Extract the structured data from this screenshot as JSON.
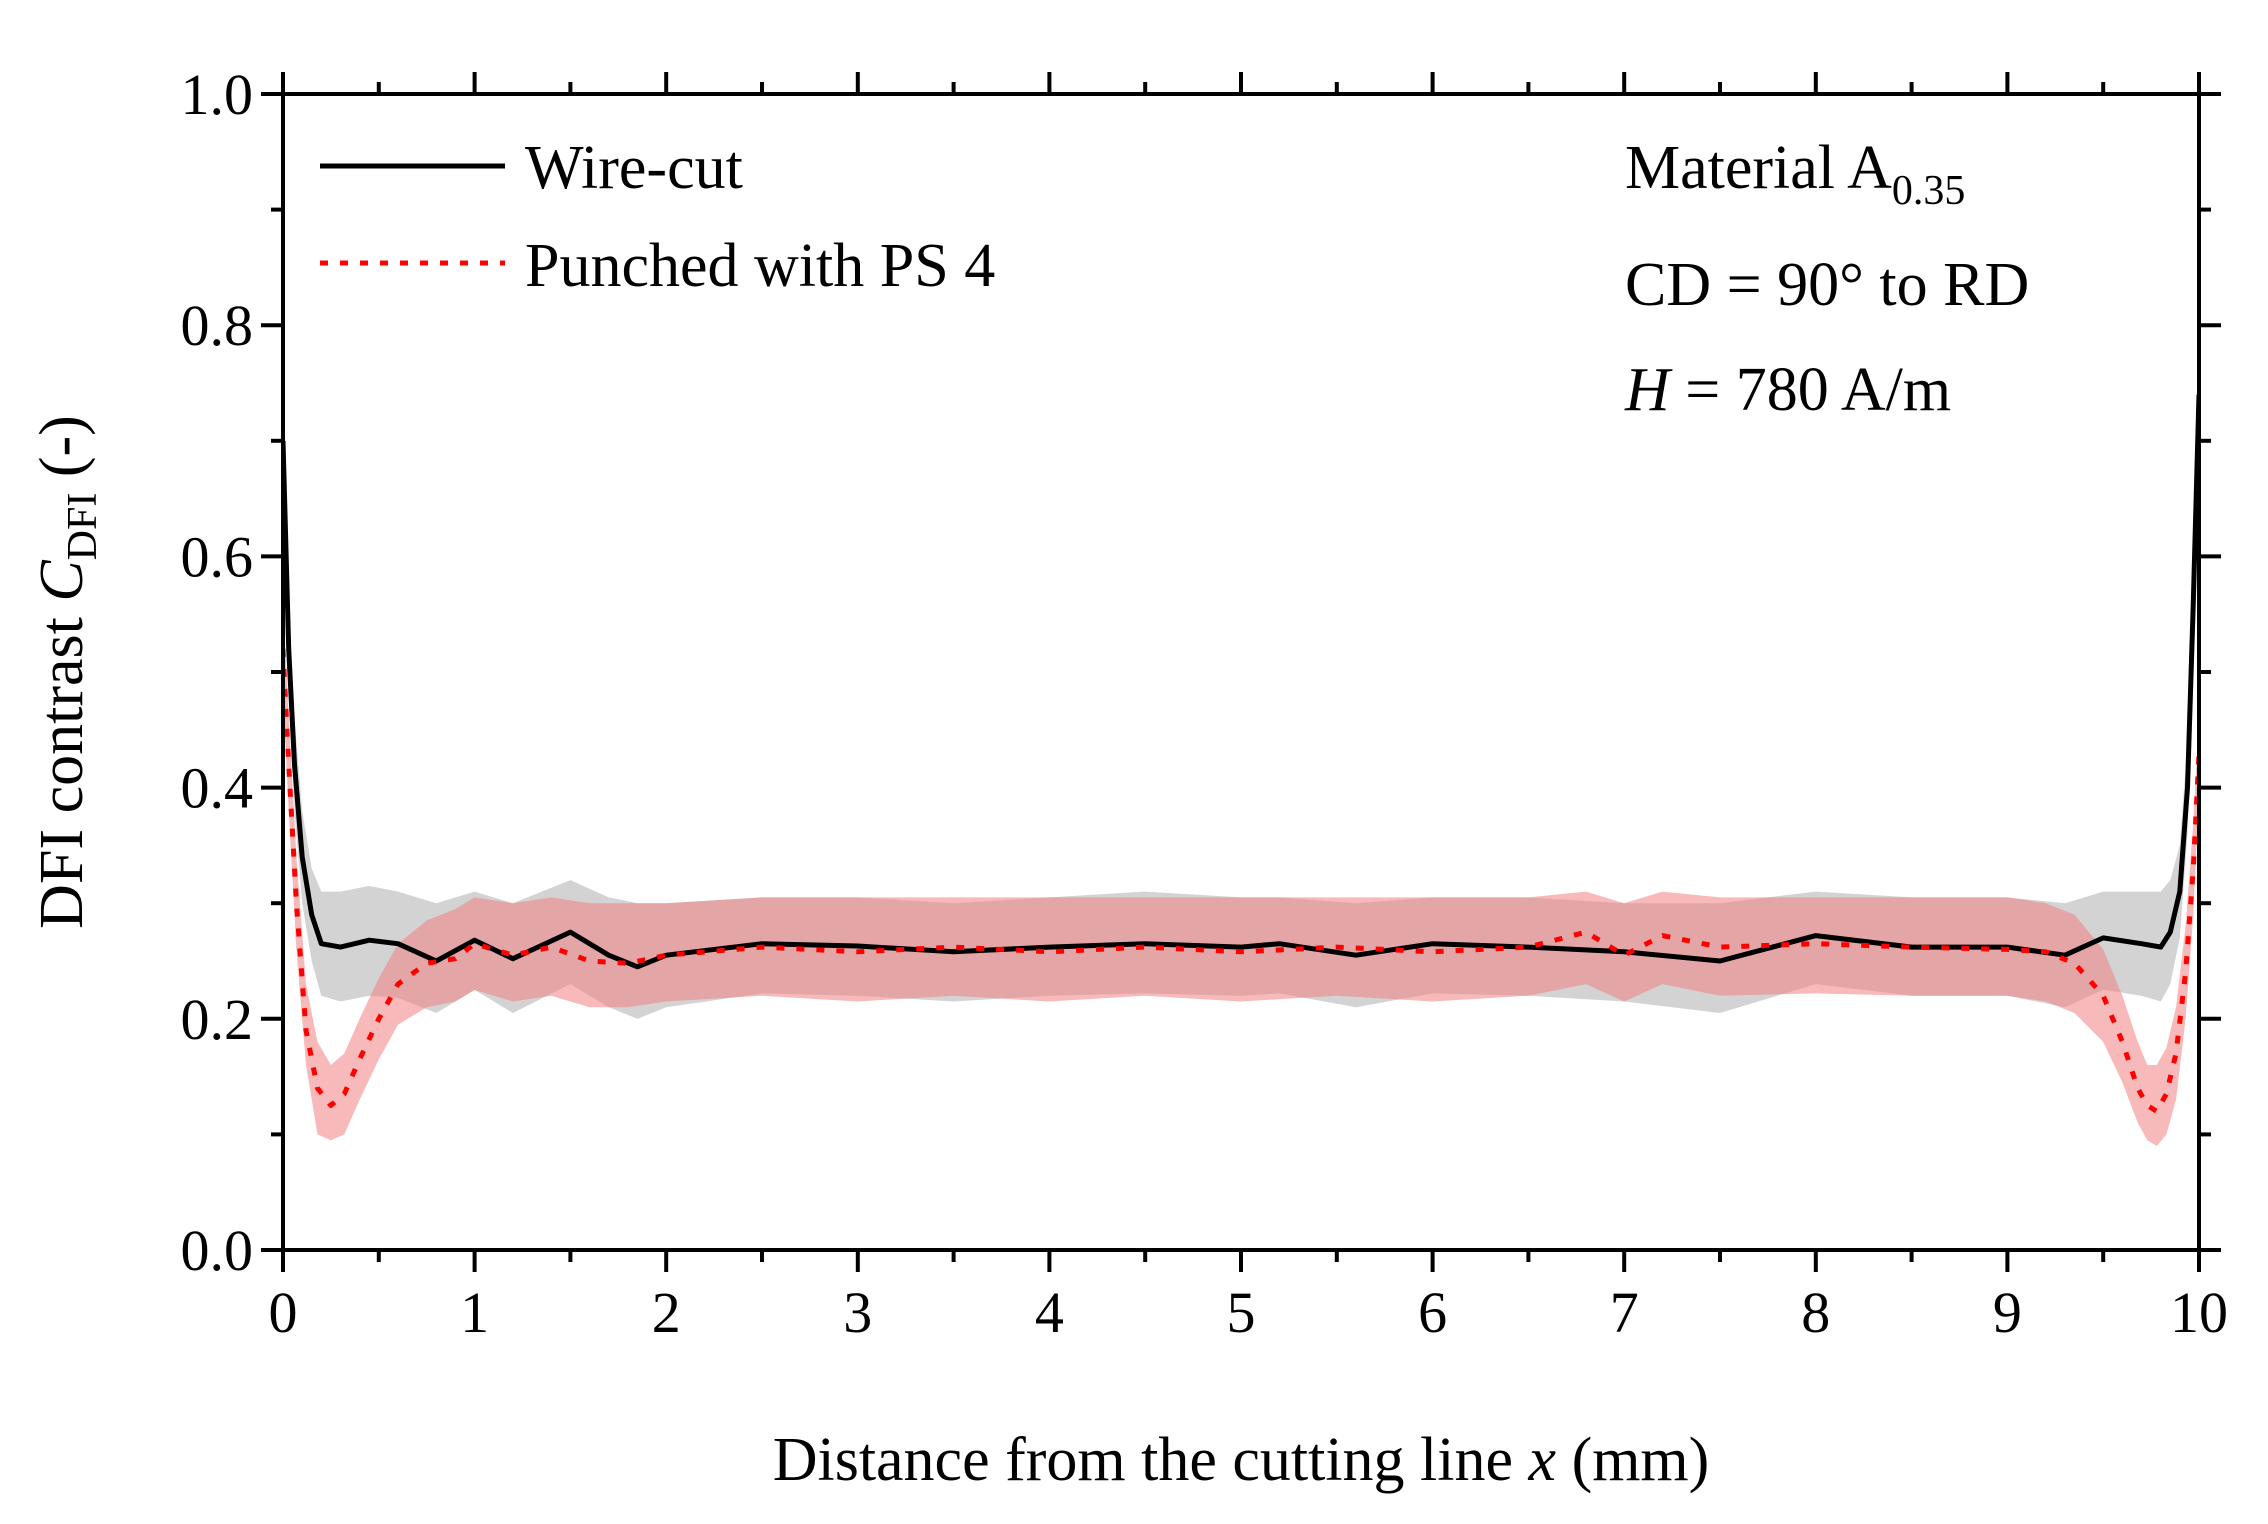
{
  "chart_data": {
    "type": "line",
    "title": "",
    "xlabel": "Distance from the cutting line x (mm)",
    "xlabel_parts": {
      "main": "Distance from the cutting line ",
      "var": "x",
      "unit": " (mm)"
    },
    "ylabel": "DFI contrast C_DFI (-)",
    "ylabel_parts": {
      "main": "DFI contrast ",
      "var": "C",
      "sub": "DFI",
      "unit": " (-)"
    },
    "xlim": [
      0,
      10
    ],
    "ylim": [
      0,
      1.0
    ],
    "xticks": [
      "0",
      "1",
      "2",
      "3",
      "4",
      "5",
      "6",
      "7",
      "8",
      "9",
      "10"
    ],
    "yticks": [
      "0.0",
      "0.2",
      "0.4",
      "0.6",
      "0.8",
      "1.0"
    ],
    "grid": false,
    "legend_position": "top-left",
    "series": [
      {
        "name": "Wire-cut",
        "color": "#000000",
        "band_color": "#c8c8c8",
        "style": "solid",
        "x": [
          0.0,
          0.03,
          0.06,
          0.1,
          0.15,
          0.2,
          0.3,
          0.45,
          0.6,
          0.8,
          1.0,
          1.2,
          1.5,
          1.7,
          1.85,
          2.0,
          2.5,
          3.0,
          3.5,
          4.0,
          4.5,
          5.0,
          5.2,
          5.6,
          6.0,
          6.5,
          7.0,
          7.5,
          8.0,
          8.5,
          9.0,
          9.3,
          9.5,
          9.7,
          9.8,
          9.85,
          9.9,
          9.94,
          9.97,
          10.0
        ],
        "mean": [
          0.7,
          0.52,
          0.42,
          0.34,
          0.29,
          0.265,
          0.262,
          0.268,
          0.265,
          0.25,
          0.268,
          0.252,
          0.275,
          0.255,
          0.245,
          0.255,
          0.265,
          0.263,
          0.258,
          0.262,
          0.265,
          0.262,
          0.265,
          0.255,
          0.265,
          0.262,
          0.258,
          0.25,
          0.272,
          0.262,
          0.262,
          0.255,
          0.27,
          0.265,
          0.262,
          0.275,
          0.31,
          0.4,
          0.56,
          0.74
        ],
        "upper": [
          0.74,
          0.56,
          0.46,
          0.38,
          0.33,
          0.31,
          0.31,
          0.315,
          0.31,
          0.3,
          0.31,
          0.3,
          0.32,
          0.305,
          0.3,
          0.3,
          0.305,
          0.305,
          0.3,
          0.305,
          0.31,
          0.305,
          0.305,
          0.3,
          0.305,
          0.305,
          0.3,
          0.3,
          0.31,
          0.305,
          0.305,
          0.3,
          0.31,
          0.31,
          0.31,
          0.32,
          0.35,
          0.44,
          0.6,
          0.76
        ],
        "lower": [
          0.66,
          0.48,
          0.38,
          0.3,
          0.25,
          0.22,
          0.215,
          0.22,
          0.218,
          0.205,
          0.225,
          0.205,
          0.23,
          0.21,
          0.2,
          0.21,
          0.222,
          0.22,
          0.215,
          0.22,
          0.222,
          0.22,
          0.222,
          0.21,
          0.222,
          0.22,
          0.215,
          0.205,
          0.23,
          0.22,
          0.22,
          0.21,
          0.225,
          0.22,
          0.215,
          0.23,
          0.27,
          0.36,
          0.52,
          0.72
        ]
      },
      {
        "name": "Punched with PS 4",
        "color": "#ff0000",
        "band_color": "#f08080",
        "style": "dotted",
        "x": [
          0.0,
          0.03,
          0.07,
          0.12,
          0.18,
          0.25,
          0.32,
          0.4,
          0.5,
          0.6,
          0.75,
          0.9,
          1.0,
          1.2,
          1.4,
          1.6,
          1.8,
          2.0,
          2.5,
          3.0,
          3.5,
          4.0,
          4.5,
          5.0,
          5.5,
          6.0,
          6.5,
          6.8,
          7.0,
          7.2,
          7.5,
          8.0,
          8.5,
          9.0,
          9.2,
          9.35,
          9.5,
          9.6,
          9.68,
          9.73,
          9.78,
          9.83,
          9.88,
          9.93,
          9.97,
          10.0
        ],
        "mean": [
          0.52,
          0.42,
          0.3,
          0.19,
          0.14,
          0.125,
          0.135,
          0.165,
          0.2,
          0.23,
          0.248,
          0.252,
          0.265,
          0.255,
          0.262,
          0.25,
          0.248,
          0.255,
          0.262,
          0.258,
          0.262,
          0.258,
          0.262,
          0.258,
          0.262,
          0.258,
          0.262,
          0.275,
          0.255,
          0.272,
          0.262,
          0.265,
          0.262,
          0.26,
          0.258,
          0.248,
          0.22,
          0.18,
          0.14,
          0.125,
          0.12,
          0.135,
          0.17,
          0.24,
          0.33,
          0.43
        ],
        "upper": [
          0.56,
          0.46,
          0.34,
          0.23,
          0.18,
          0.16,
          0.17,
          0.2,
          0.235,
          0.265,
          0.285,
          0.295,
          0.305,
          0.3,
          0.305,
          0.3,
          0.3,
          0.3,
          0.305,
          0.305,
          0.305,
          0.305,
          0.305,
          0.305,
          0.305,
          0.305,
          0.305,
          0.31,
          0.3,
          0.31,
          0.305,
          0.305,
          0.305,
          0.305,
          0.3,
          0.29,
          0.26,
          0.22,
          0.18,
          0.16,
          0.16,
          0.175,
          0.21,
          0.28,
          0.37,
          0.46
        ],
        "lower": [
          0.48,
          0.38,
          0.26,
          0.16,
          0.1,
          0.095,
          0.1,
          0.13,
          0.165,
          0.195,
          0.21,
          0.215,
          0.225,
          0.215,
          0.22,
          0.21,
          0.21,
          0.215,
          0.22,
          0.215,
          0.22,
          0.215,
          0.22,
          0.215,
          0.22,
          0.215,
          0.22,
          0.23,
          0.215,
          0.23,
          0.22,
          0.222,
          0.22,
          0.22,
          0.215,
          0.205,
          0.18,
          0.145,
          0.11,
          0.095,
          0.09,
          0.1,
          0.13,
          0.2,
          0.29,
          0.4
        ]
      }
    ],
    "annotations": {
      "material_prefix": "Material A",
      "material_sub": "0.35",
      "cd": "CD = 90° to RD",
      "field_var": "H",
      "field_rest": " = 780 A/m"
    }
  }
}
